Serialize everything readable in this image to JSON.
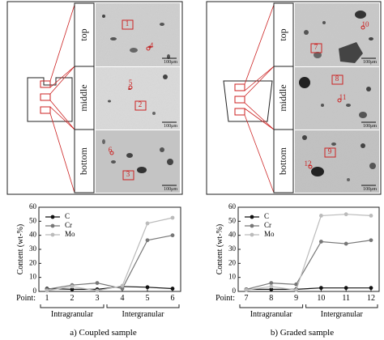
{
  "micrograph_panels": {
    "left": {
      "rows": [
        {
          "label": "top",
          "points": [
            "1",
            "4"
          ],
          "scale": "100μm"
        },
        {
          "label": "middle",
          "points": [
            "5",
            "2"
          ],
          "scale": "100μm"
        },
        {
          "label": "bottom",
          "points": [
            "6",
            "3"
          ],
          "scale": "100μm"
        }
      ]
    },
    "right": {
      "rows": [
        {
          "label": "top",
          "points": [
            "10",
            "7"
          ],
          "scale": "100μm"
        },
        {
          "label": "middle",
          "points": [
            "8",
            "11"
          ],
          "scale": "100μm"
        },
        {
          "label": "bottom",
          "points": [
            "12",
            "9"
          ],
          "scale": "100μm"
        }
      ]
    }
  },
  "chart_data": [
    {
      "type": "line",
      "ylabel": "Content (wt-%)",
      "x_prefix": "Point:",
      "categories": [
        "1",
        "2",
        "3",
        "4",
        "5",
        "6"
      ],
      "groups": [
        "Intragranular",
        "Intergranular"
      ],
      "ylim": [
        0,
        60
      ],
      "yticks": [
        0,
        10,
        20,
        30,
        40,
        50,
        60
      ],
      "legend": "top-left",
      "series": [
        {
          "name": "C",
          "color": "#111111",
          "values": [
            2.0,
            1.5,
            1.5,
            3.5,
            3.0,
            2.0
          ]
        },
        {
          "name": "Cr",
          "color": "#777777",
          "values": [
            1.5,
            4.5,
            6.0,
            2.0,
            36.5,
            40.0
          ]
        },
        {
          "name": "Mo",
          "color": "#bbbbbb",
          "values": [
            0.5,
            3.5,
            0.5,
            4.0,
            48.5,
            52.5
          ]
        }
      ],
      "caption": "a)   Coupled sample"
    },
    {
      "type": "line",
      "ylabel": "Content (wt-%)",
      "x_prefix": "Point:",
      "categories": [
        "7",
        "8",
        "9",
        "10",
        "11",
        "12"
      ],
      "groups": [
        "Intragranular",
        "Intergranular"
      ],
      "ylim": [
        0,
        60
      ],
      "yticks": [
        0,
        10,
        20,
        30,
        40,
        50,
        60
      ],
      "legend": "top-left",
      "series": [
        {
          "name": "C",
          "color": "#111111",
          "values": [
            1.5,
            1.5,
            1.5,
            2.5,
            2.5,
            2.5
          ]
        },
        {
          "name": "Cr",
          "color": "#777777",
          "values": [
            1.5,
            6.0,
            5.0,
            35.5,
            34.0,
            36.5
          ]
        },
        {
          "name": "Mo",
          "color": "#bbbbbb",
          "values": [
            1.0,
            3.5,
            1.0,
            54.0,
            55.0,
            54.0
          ]
        }
      ],
      "caption": "b)   Graded sample"
    }
  ]
}
